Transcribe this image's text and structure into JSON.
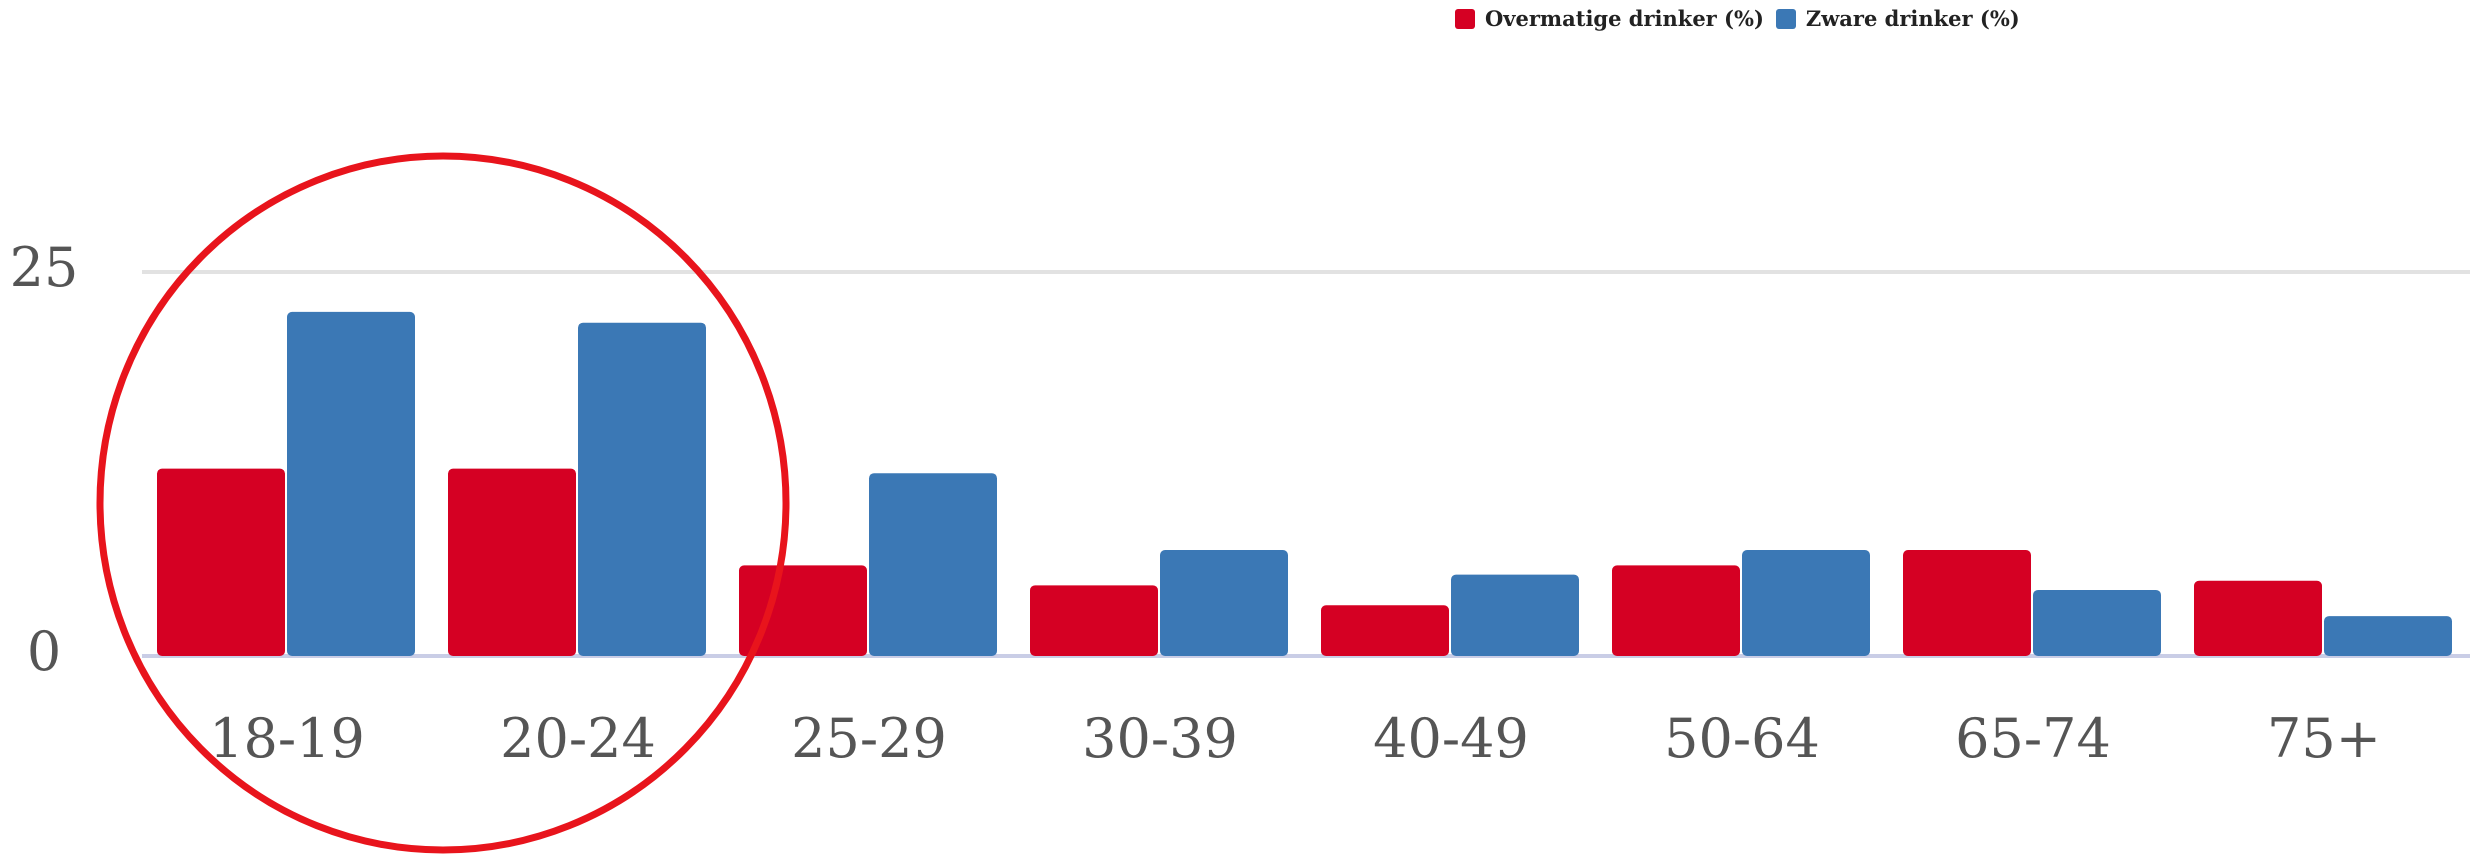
{
  "chart_data": {
    "type": "bar",
    "categories": [
      "18-19",
      "20-24",
      "25-29",
      "30-39",
      "40-49",
      "50-64",
      "65-74",
      "75+"
    ],
    "series": [
      {
        "name": "Overmatige drinker (%)",
        "color": "#d50023",
        "values": [
          12.2,
          12.2,
          5.9,
          4.6,
          3.3,
          5.9,
          6.9,
          4.9
        ]
      },
      {
        "name": "Zware drinker (%)",
        "color": "#3b78b5",
        "values": [
          22.4,
          21.7,
          11.9,
          6.9,
          5.3,
          6.9,
          4.3,
          2.6
        ]
      }
    ],
    "y_ticks": [
      "0",
      "25"
    ],
    "ylim": [
      0,
      25
    ],
    "gridlines": true,
    "legend_position": "top",
    "annotation": {
      "shape": "circle",
      "color": "#e8141c",
      "target_categories": [
        "18-19",
        "20-24"
      ]
    }
  }
}
